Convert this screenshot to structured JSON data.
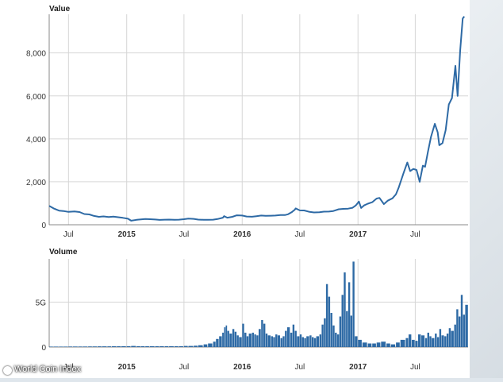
{
  "credit": "World Coin Index",
  "chart_data": [
    {
      "type": "line",
      "title": "Value",
      "ylim": [
        0,
        9800
      ],
      "yticks": [
        0,
        2000,
        4000,
        6000,
        8000
      ],
      "ytick_labels": [
        "0",
        "2,000",
        "4,000",
        "6,000",
        "8,000"
      ],
      "xlim": [
        "2014-05-01",
        "2017-12-15"
      ],
      "xticks": [
        {
          "date": "2014-07-01",
          "label": "Jul",
          "bold": false
        },
        {
          "date": "2015-01-01",
          "label": "2015",
          "bold": true
        },
        {
          "date": "2015-07-01",
          "label": "Jul",
          "bold": false
        },
        {
          "date": "2016-01-01",
          "label": "2016",
          "bold": true
        },
        {
          "date": "2016-07-01",
          "label": "Jul",
          "bold": false
        },
        {
          "date": "2017-01-01",
          "label": "2017",
          "bold": true
        },
        {
          "date": "2017-07-01",
          "label": "Jul",
          "bold": false
        },
        {
          "date": "2018-01-01",
          "label": "J",
          "bold": false
        }
      ],
      "grid": true,
      "series": [
        {
          "color": "#2e6aa5",
          "points": [
            [
              "2014-05-01",
              880
            ],
            [
              "2014-05-15",
              760
            ],
            [
              "2014-06-01",
              660
            ],
            [
              "2014-06-15",
              640
            ],
            [
              "2014-07-01",
              600
            ],
            [
              "2014-07-20",
              620
            ],
            [
              "2014-08-05",
              590
            ],
            [
              "2014-08-20",
              500
            ],
            [
              "2014-09-05",
              480
            ],
            [
              "2014-09-20",
              410
            ],
            [
              "2014-10-05",
              370
            ],
            [
              "2014-10-20",
              390
            ],
            [
              "2014-11-05",
              360
            ],
            [
              "2014-11-20",
              380
            ],
            [
              "2014-12-05",
              350
            ],
            [
              "2014-12-20",
              320
            ],
            [
              "2015-01-05",
              280
            ],
            [
              "2015-01-15",
              190
            ],
            [
              "2015-02-01",
              230
            ],
            [
              "2015-02-15",
              250
            ],
            [
              "2015-03-01",
              270
            ],
            [
              "2015-03-15",
              260
            ],
            [
              "2015-04-01",
              245
            ],
            [
              "2015-04-15",
              225
            ],
            [
              "2015-05-01",
              235
            ],
            [
              "2015-05-15",
              240
            ],
            [
              "2015-06-01",
              228
            ],
            [
              "2015-06-15",
              235
            ],
            [
              "2015-07-01",
              260
            ],
            [
              "2015-07-15",
              285
            ],
            [
              "2015-08-01",
              275
            ],
            [
              "2015-08-15",
              240
            ],
            [
              "2015-09-01",
              230
            ],
            [
              "2015-09-15",
              232
            ],
            [
              "2015-10-01",
              238
            ],
            [
              "2015-10-15",
              265
            ],
            [
              "2015-11-01",
              330
            ],
            [
              "2015-11-05",
              400
            ],
            [
              "2015-11-15",
              330
            ],
            [
              "2015-12-01",
              370
            ],
            [
              "2015-12-15",
              440
            ],
            [
              "2016-01-01",
              430
            ],
            [
              "2016-01-15",
              385
            ],
            [
              "2016-02-01",
              375
            ],
            [
              "2016-02-15",
              400
            ],
            [
              "2016-03-01",
              430
            ],
            [
              "2016-03-15",
              415
            ],
            [
              "2016-04-01",
              420
            ],
            [
              "2016-04-15",
              430
            ],
            [
              "2016-05-01",
              455
            ],
            [
              "2016-05-15",
              450
            ],
            [
              "2016-05-25",
              490
            ],
            [
              "2016-06-05",
              580
            ],
            [
              "2016-06-15",
              700
            ],
            [
              "2016-06-18",
              760
            ],
            [
              "2016-07-01",
              670
            ],
            [
              "2016-07-15",
              665
            ],
            [
              "2016-08-01",
              600
            ],
            [
              "2016-08-15",
              575
            ],
            [
              "2016-09-01",
              580
            ],
            [
              "2016-09-15",
              610
            ],
            [
              "2016-10-01",
              615
            ],
            [
              "2016-10-15",
              640
            ],
            [
              "2016-11-01",
              720
            ],
            [
              "2016-11-15",
              740
            ],
            [
              "2016-12-01",
              750
            ],
            [
              "2016-12-15",
              790
            ],
            [
              "2016-12-25",
              900
            ],
            [
              "2017-01-04",
              1080
            ],
            [
              "2017-01-11",
              780
            ],
            [
              "2017-01-20",
              900
            ],
            [
              "2017-02-01",
              980
            ],
            [
              "2017-02-15",
              1050
            ],
            [
              "2017-03-01",
              1220
            ],
            [
              "2017-03-10",
              1250
            ],
            [
              "2017-03-24",
              960
            ],
            [
              "2017-04-05",
              1120
            ],
            [
              "2017-04-20",
              1230
            ],
            [
              "2017-05-01",
              1420
            ],
            [
              "2017-05-10",
              1750
            ],
            [
              "2017-05-25",
              2400
            ],
            [
              "2017-06-06",
              2900
            ],
            [
              "2017-06-15",
              2500
            ],
            [
              "2017-06-25",
              2600
            ],
            [
              "2017-07-05",
              2550
            ],
            [
              "2017-07-15",
              2000
            ],
            [
              "2017-07-25",
              2750
            ],
            [
              "2017-08-01",
              2700
            ],
            [
              "2017-08-10",
              3400
            ],
            [
              "2017-08-20",
              4100
            ],
            [
              "2017-09-01",
              4700
            ],
            [
              "2017-09-10",
              4300
            ],
            [
              "2017-09-15",
              3700
            ],
            [
              "2017-09-25",
              3800
            ],
            [
              "2017-10-05",
              4400
            ],
            [
              "2017-10-15",
              5600
            ],
            [
              "2017-10-25",
              5900
            ],
            [
              "2017-11-05",
              7400
            ],
            [
              "2017-11-12",
              6000
            ],
            [
              "2017-11-20",
              8100
            ],
            [
              "2017-11-28",
              9600
            ],
            [
              "2017-12-03",
              9700
            ]
          ]
        }
      ]
    },
    {
      "type": "bar",
      "title": "Volume",
      "ylim": [
        0,
        9.8
      ],
      "yticks": [
        0,
        5
      ],
      "ytick_labels": [
        "0",
        "5G"
      ],
      "xlim": [
        "2014-05-01",
        "2017-12-15"
      ],
      "xticks": [
        {
          "date": "2014-07-01",
          "label": "Jul",
          "bold": false
        },
        {
          "date": "2015-01-01",
          "label": "2015",
          "bold": true
        },
        {
          "date": "2015-07-01",
          "label": "Jul",
          "bold": false
        },
        {
          "date": "2016-01-01",
          "label": "2016",
          "bold": true
        },
        {
          "date": "2016-07-01",
          "label": "Jul",
          "bold": false
        },
        {
          "date": "2017-01-01",
          "label": "2017",
          "bold": true
        },
        {
          "date": "2017-07-01",
          "label": "Jul",
          "bold": false
        }
      ],
      "grid": true,
      "series": [
        {
          "color": "#2e6aa5",
          "points": [
            [
              "2014-05-01",
              0.05
            ],
            [
              "2014-05-15",
              0.05
            ],
            [
              "2014-06-01",
              0.05
            ],
            [
              "2014-06-15",
              0.05
            ],
            [
              "2014-07-01",
              0.06
            ],
            [
              "2014-07-15",
              0.06
            ],
            [
              "2014-08-01",
              0.06
            ],
            [
              "2014-08-15",
              0.06
            ],
            [
              "2014-09-01",
              0.07
            ],
            [
              "2014-09-15",
              0.07
            ],
            [
              "2014-10-01",
              0.08
            ],
            [
              "2014-10-15",
              0.08
            ],
            [
              "2014-11-01",
              0.08
            ],
            [
              "2014-11-15",
              0.09
            ],
            [
              "2014-12-01",
              0.09
            ],
            [
              "2014-12-15",
              0.1
            ],
            [
              "2015-01-01",
              0.1
            ],
            [
              "2015-01-15",
              0.12
            ],
            [
              "2015-02-01",
              0.1
            ],
            [
              "2015-02-15",
              0.1
            ],
            [
              "2015-03-01",
              0.1
            ],
            [
              "2015-03-15",
              0.1
            ],
            [
              "2015-04-01",
              0.1
            ],
            [
              "2015-04-15",
              0.1
            ],
            [
              "2015-05-01",
              0.1
            ],
            [
              "2015-05-15",
              0.1
            ],
            [
              "2015-06-01",
              0.1
            ],
            [
              "2015-06-15",
              0.1
            ],
            [
              "2015-07-01",
              0.12
            ],
            [
              "2015-07-15",
              0.12
            ],
            [
              "2015-08-01",
              0.15
            ],
            [
              "2015-08-15",
              0.2
            ],
            [
              "2015-09-01",
              0.3
            ],
            [
              "2015-09-15",
              0.4
            ],
            [
              "2015-10-01",
              0.6
            ],
            [
              "2015-10-10",
              0.9
            ],
            [
              "2015-10-20",
              1.2
            ],
            [
              "2015-10-30",
              1.6
            ],
            [
              "2015-11-05",
              2.2
            ],
            [
              "2015-11-10",
              2.4
            ],
            [
              "2015-11-15",
              1.8
            ],
            [
              "2015-11-22",
              1.5
            ],
            [
              "2015-12-01",
              2.0
            ],
            [
              "2015-12-08",
              1.7
            ],
            [
              "2015-12-15",
              1.3
            ],
            [
              "2015-12-22",
              1.1
            ],
            [
              "2016-01-01",
              2.6
            ],
            [
              "2016-01-08",
              1.6
            ],
            [
              "2016-01-15",
              1.2
            ],
            [
              "2016-01-22",
              1.5
            ],
            [
              "2016-02-01",
              1.6
            ],
            [
              "2016-02-08",
              1.4
            ],
            [
              "2016-02-15",
              1.3
            ],
            [
              "2016-02-22",
              2.0
            ],
            [
              "2016-03-01",
              3.0
            ],
            [
              "2016-03-08",
              2.6
            ],
            [
              "2016-03-15",
              1.5
            ],
            [
              "2016-03-22",
              1.3
            ],
            [
              "2016-04-01",
              1.2
            ],
            [
              "2016-04-08",
              1.1
            ],
            [
              "2016-04-15",
              1.4
            ],
            [
              "2016-04-22",
              1.3
            ],
            [
              "2016-05-01",
              1.0
            ],
            [
              "2016-05-08",
              1.2
            ],
            [
              "2016-05-15",
              1.8
            ],
            [
              "2016-05-22",
              2.2
            ],
            [
              "2016-06-01",
              1.6
            ],
            [
              "2016-06-08",
              2.5
            ],
            [
              "2016-06-15",
              1.8
            ],
            [
              "2016-06-22",
              1.2
            ],
            [
              "2016-07-01",
              1.4
            ],
            [
              "2016-07-08",
              1.1
            ],
            [
              "2016-07-15",
              1.0
            ],
            [
              "2016-07-22",
              1.2
            ],
            [
              "2016-08-01",
              1.3
            ],
            [
              "2016-08-08",
              1.1
            ],
            [
              "2016-08-15",
              1.0
            ],
            [
              "2016-08-22",
              1.2
            ],
            [
              "2016-09-01",
              1.4
            ],
            [
              "2016-09-08",
              2.5
            ],
            [
              "2016-09-15",
              3.2
            ],
            [
              "2016-09-22",
              7.0
            ],
            [
              "2016-09-29",
              5.6
            ],
            [
              "2016-10-06",
              3.8
            ],
            [
              "2016-10-13",
              2.4
            ],
            [
              "2016-10-20",
              1.6
            ],
            [
              "2016-10-27",
              1.4
            ],
            [
              "2016-11-03",
              3.4
            ],
            [
              "2016-11-10",
              5.8
            ],
            [
              "2016-11-17",
              8.3
            ],
            [
              "2016-11-24",
              4.0
            ],
            [
              "2016-12-01",
              7.2
            ],
            [
              "2016-12-08",
              3.5
            ],
            [
              "2016-12-15",
              9.5
            ],
            [
              "2016-12-22",
              1.2
            ],
            [
              "2017-01-01",
              0.8
            ],
            [
              "2017-01-15",
              0.5
            ],
            [
              "2017-02-01",
              0.4
            ],
            [
              "2017-02-15",
              0.4
            ],
            [
              "2017-03-01",
              0.5
            ],
            [
              "2017-03-15",
              0.6
            ],
            [
              "2017-04-01",
              0.4
            ],
            [
              "2017-04-15",
              0.3
            ],
            [
              "2017-05-01",
              0.5
            ],
            [
              "2017-05-15",
              0.8
            ],
            [
              "2017-06-01",
              1.0
            ],
            [
              "2017-06-10",
              1.4
            ],
            [
              "2017-06-20",
              0.8
            ],
            [
              "2017-07-01",
              0.7
            ],
            [
              "2017-07-10",
              1.4
            ],
            [
              "2017-07-20",
              1.3
            ],
            [
              "2017-08-01",
              1.0
            ],
            [
              "2017-08-08",
              1.6
            ],
            [
              "2017-08-15",
              1.2
            ],
            [
              "2017-08-22",
              1.0
            ],
            [
              "2017-09-01",
              1.5
            ],
            [
              "2017-09-08",
              1.1
            ],
            [
              "2017-09-15",
              2.0
            ],
            [
              "2017-09-22",
              1.3
            ],
            [
              "2017-10-01",
              1.2
            ],
            [
              "2017-10-08",
              1.5
            ],
            [
              "2017-10-15",
              2.1
            ],
            [
              "2017-10-22",
              1.8
            ],
            [
              "2017-11-01",
              2.5
            ],
            [
              "2017-11-08",
              4.2
            ],
            [
              "2017-11-15",
              3.4
            ],
            [
              "2017-11-22",
              5.8
            ],
            [
              "2017-11-29",
              3.6
            ],
            [
              "2017-12-06",
              4.7
            ]
          ]
        }
      ]
    }
  ]
}
